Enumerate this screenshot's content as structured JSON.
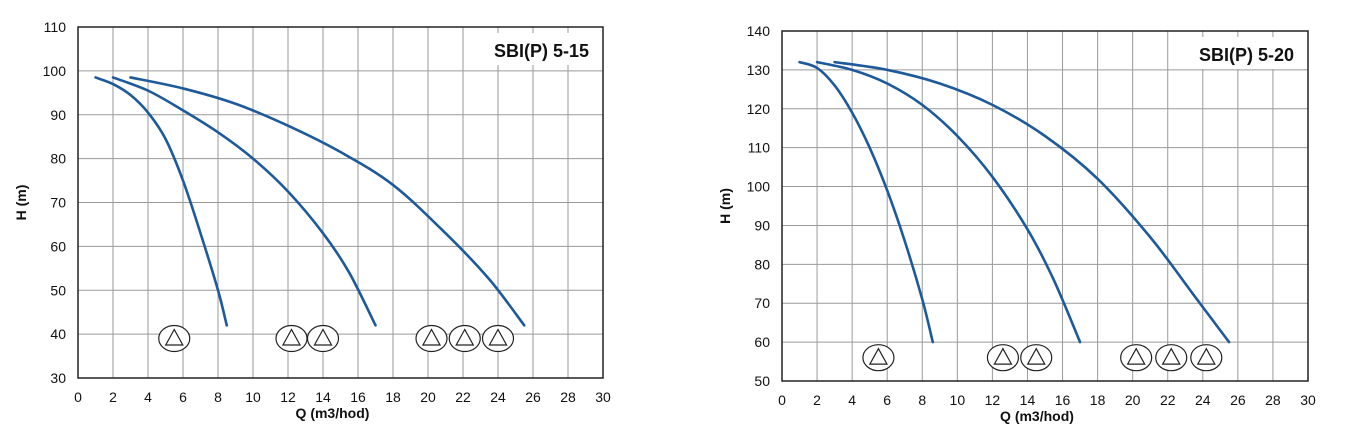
{
  "chart_data": [
    {
      "type": "line",
      "title": "SBI(P) 5-15",
      "xlabel": "Q (m3/hod)",
      "ylabel": "H (m)",
      "xlim": [
        0,
        30
      ],
      "ylim": [
        30,
        110
      ],
      "x_ticks": [
        0,
        2,
        4,
        6,
        8,
        10,
        12,
        14,
        16,
        18,
        20,
        22,
        24,
        26,
        28,
        30
      ],
      "y_ticks": [
        30,
        40,
        50,
        60,
        70,
        80,
        90,
        100,
        110
      ],
      "grid": true,
      "series": [
        {
          "stages": 1,
          "points": [
            [
              1,
              98.5
            ],
            [
              2,
              97
            ],
            [
              3,
              94.5
            ],
            [
              4,
              90.5
            ],
            [
              5,
              84.5
            ],
            [
              6,
              75
            ],
            [
              7,
              63
            ],
            [
              8,
              50
            ],
            [
              8.5,
              42
            ]
          ]
        },
        {
          "stages": 2,
          "points": [
            [
              2,
              98.5
            ],
            [
              4,
              95.5
            ],
            [
              6,
              91
            ],
            [
              8,
              86
            ],
            [
              10,
              80
            ],
            [
              12,
              72.5
            ],
            [
              14,
              63
            ],
            [
              15.5,
              54
            ],
            [
              17,
              42
            ]
          ]
        },
        {
          "stages": 3,
          "points": [
            [
              3,
              98.5
            ],
            [
              6,
              96
            ],
            [
              9,
              92.5
            ],
            [
              12,
              87.5
            ],
            [
              15,
              81.5
            ],
            [
              18,
              74
            ],
            [
              21,
              63
            ],
            [
              23.5,
              52.5
            ],
            [
              25.5,
              42
            ]
          ]
        }
      ],
      "markers": [
        {
          "group": 1,
          "x": [
            5.5
          ],
          "y": 39
        },
        {
          "group": 2,
          "x": [
            12.2,
            14
          ],
          "y": 39
        },
        {
          "group": 3,
          "x": [
            20.2,
            22.1,
            24
          ],
          "y": 39
        }
      ]
    },
    {
      "type": "line",
      "title": "SBI(P) 5-20",
      "xlabel": "Q (m3/hod)",
      "ylabel": "H (m)",
      "xlim": [
        0,
        30
      ],
      "ylim": [
        50,
        140
      ],
      "x_ticks": [
        0,
        2,
        4,
        6,
        8,
        10,
        12,
        14,
        16,
        18,
        20,
        22,
        24,
        26,
        28,
        30
      ],
      "y_ticks": [
        50,
        60,
        70,
        80,
        90,
        100,
        110,
        120,
        130,
        140
      ],
      "grid": true,
      "series": [
        {
          "stages": 1,
          "points": [
            [
              1,
              132
            ],
            [
              2,
              130.5
            ],
            [
              3,
              126
            ],
            [
              4,
              119
            ],
            [
              5,
              110
            ],
            [
              6,
              99
            ],
            [
              7,
              86
            ],
            [
              8,
              71
            ],
            [
              8.6,
              60
            ]
          ]
        },
        {
          "stages": 2,
          "points": [
            [
              2,
              132
            ],
            [
              4,
              130
            ],
            [
              6,
              126.5
            ],
            [
              8,
              121
            ],
            [
              10,
              113
            ],
            [
              12,
              102.5
            ],
            [
              14,
              89
            ],
            [
              15.5,
              76
            ],
            [
              17,
              60
            ]
          ]
        },
        {
          "stages": 3,
          "points": [
            [
              3,
              132
            ],
            [
              6,
              130
            ],
            [
              9,
              126.5
            ],
            [
              12,
              121
            ],
            [
              15,
              113
            ],
            [
              18,
              102
            ],
            [
              21,
              87
            ],
            [
              23.5,
              72
            ],
            [
              25.5,
              60
            ]
          ]
        }
      ],
      "markers": [
        {
          "group": 1,
          "x": [
            5.5
          ],
          "y": 56
        },
        {
          "group": 2,
          "x": [
            12.6,
            14.5
          ],
          "y": 56
        },
        {
          "group": 3,
          "x": [
            20.2,
            22.2,
            24.2
          ],
          "y": 56
        }
      ]
    }
  ]
}
